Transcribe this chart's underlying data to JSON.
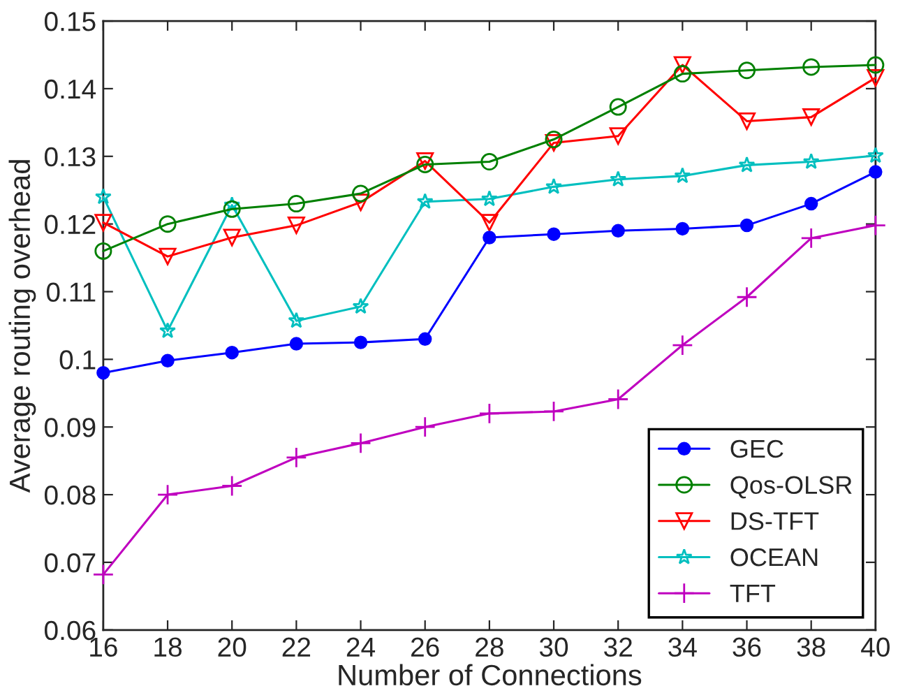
{
  "chart_data": {
    "type": "line",
    "xlabel": "Number of Connections",
    "ylabel": "Average routing overhead",
    "x": [
      16,
      18,
      20,
      22,
      24,
      26,
      28,
      30,
      32,
      34,
      36,
      38,
      40
    ],
    "series": [
      {
        "name": "GEC",
        "color": "#0000ff",
        "marker": "circle",
        "values": [
          0.098,
          0.0998,
          0.101,
          0.1023,
          0.1025,
          0.103,
          0.118,
          0.1185,
          0.119,
          0.1193,
          0.1198,
          0.123,
          0.1277
        ]
      },
      {
        "name": "Qos-OLSR",
        "color": "#008000",
        "marker": "circle",
        "values": [
          0.116,
          0.12,
          0.1222,
          0.123,
          0.1245,
          0.1288,
          0.1292,
          0.1325,
          0.1373,
          0.1422,
          0.1427,
          0.1432,
          0.1435
        ]
      },
      {
        "name": "DS-TFT",
        "color": "#ff0000",
        "marker": "triangle",
        "values": [
          0.1202,
          0.1152,
          0.118,
          0.1198,
          0.1232,
          0.1293,
          0.1202,
          0.132,
          0.133,
          0.1435,
          0.1352,
          0.1358,
          0.1416
        ]
      },
      {
        "name": "OCEAN",
        "color": "#00bfbf",
        "marker": "star",
        "values": [
          0.124,
          0.1042,
          0.1228,
          0.1057,
          0.1078,
          0.1233,
          0.1237,
          0.1255,
          0.1266,
          0.1271,
          0.1287,
          0.1292,
          0.1301
        ]
      },
      {
        "name": "TFT",
        "color": "#bf00bf",
        "marker": "cross",
        "values": [
          0.0682,
          0.08,
          0.0813,
          0.0855,
          0.0876,
          0.09,
          0.092,
          0.0923,
          0.0941,
          0.1021,
          0.1092,
          0.1179,
          0.1198
        ]
      }
    ],
    "xlim": [
      16,
      40
    ],
    "xticks": [
      16,
      18,
      20,
      22,
      24,
      26,
      28,
      30,
      32,
      34,
      36,
      38,
      40
    ],
    "ylim": [
      0.06,
      0.15
    ],
    "yticks": [
      0.06,
      0.07,
      0.08,
      0.09,
      0.1,
      0.11,
      0.12,
      0.13,
      0.14,
      0.15
    ],
    "legend": "bottom right",
    "line_style": "solid"
  }
}
